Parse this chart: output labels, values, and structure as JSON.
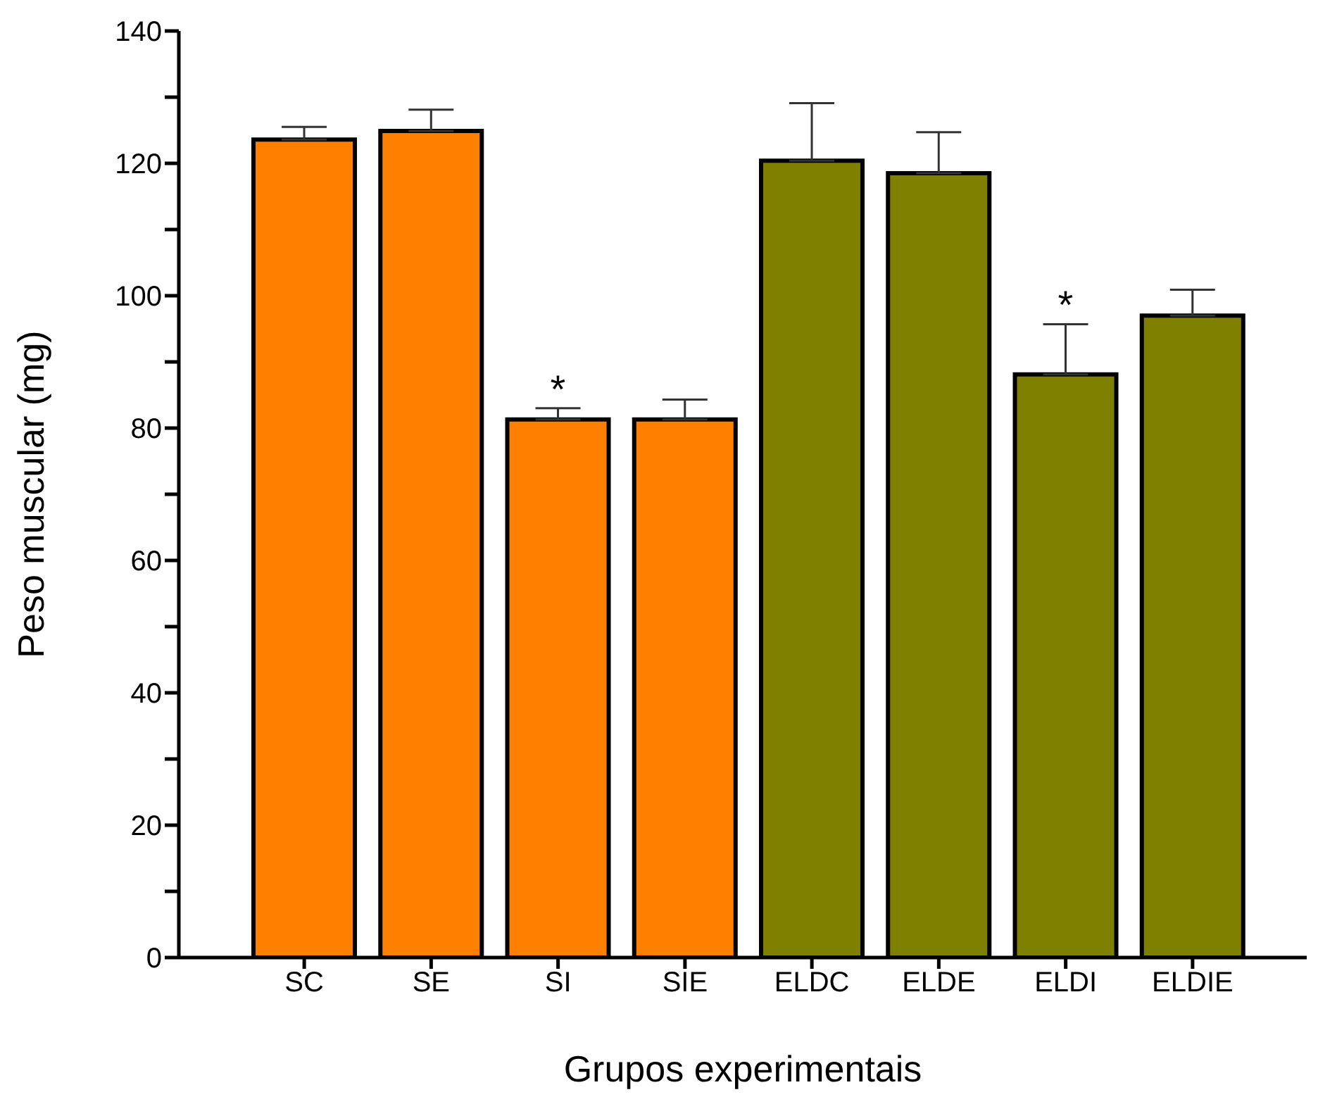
{
  "chart_data": {
    "type": "bar",
    "xlabel": "Grupos experimentais",
    "ylabel": "Peso muscular (mg)",
    "categories": [
      "SC",
      "SE",
      "SI",
      "SIE",
      "ELDC",
      "ELDE",
      "ELDI",
      "ELDIE"
    ],
    "values": [
      123.6,
      124.9,
      81.3,
      81.3,
      120.4,
      118.5,
      88.1,
      97.0
    ],
    "colors": [
      "#ff8000",
      "#ff8000",
      "#ff8000",
      "#ff8000",
      "#808000",
      "#808000",
      "#808000",
      "#808000"
    ],
    "errors": [
      [
        123.6,
        125.5
      ],
      [
        124.9,
        128.1
      ],
      [
        81.3,
        83.0
      ],
      [
        81.3,
        84.3
      ],
      [
        120.4,
        129.1
      ],
      [
        118.5,
        124.7
      ],
      [
        88.1,
        95.7
      ],
      [
        97.0,
        100.9
      ]
    ],
    "ylim": [
      0,
      140
    ],
    "yticks": [
      0,
      {
        "value": 10,
        "label": null
      },
      20,
      {
        "value": 30,
        "label": null
      },
      40,
      {
        "value": 50,
        "label": null
      },
      60,
      {
        "value": 70,
        "label": null
      },
      80,
      {
        "value": 90,
        "label": null
      },
      100,
      {
        "value": 110,
        "label": null
      },
      120,
      {
        "value": 130,
        "label": null
      },
      140
    ],
    "value_labels": [
      null,
      null,
      "*",
      null,
      null,
      null,
      "*",
      null
    ],
    "grid": false,
    "legend": false
  }
}
